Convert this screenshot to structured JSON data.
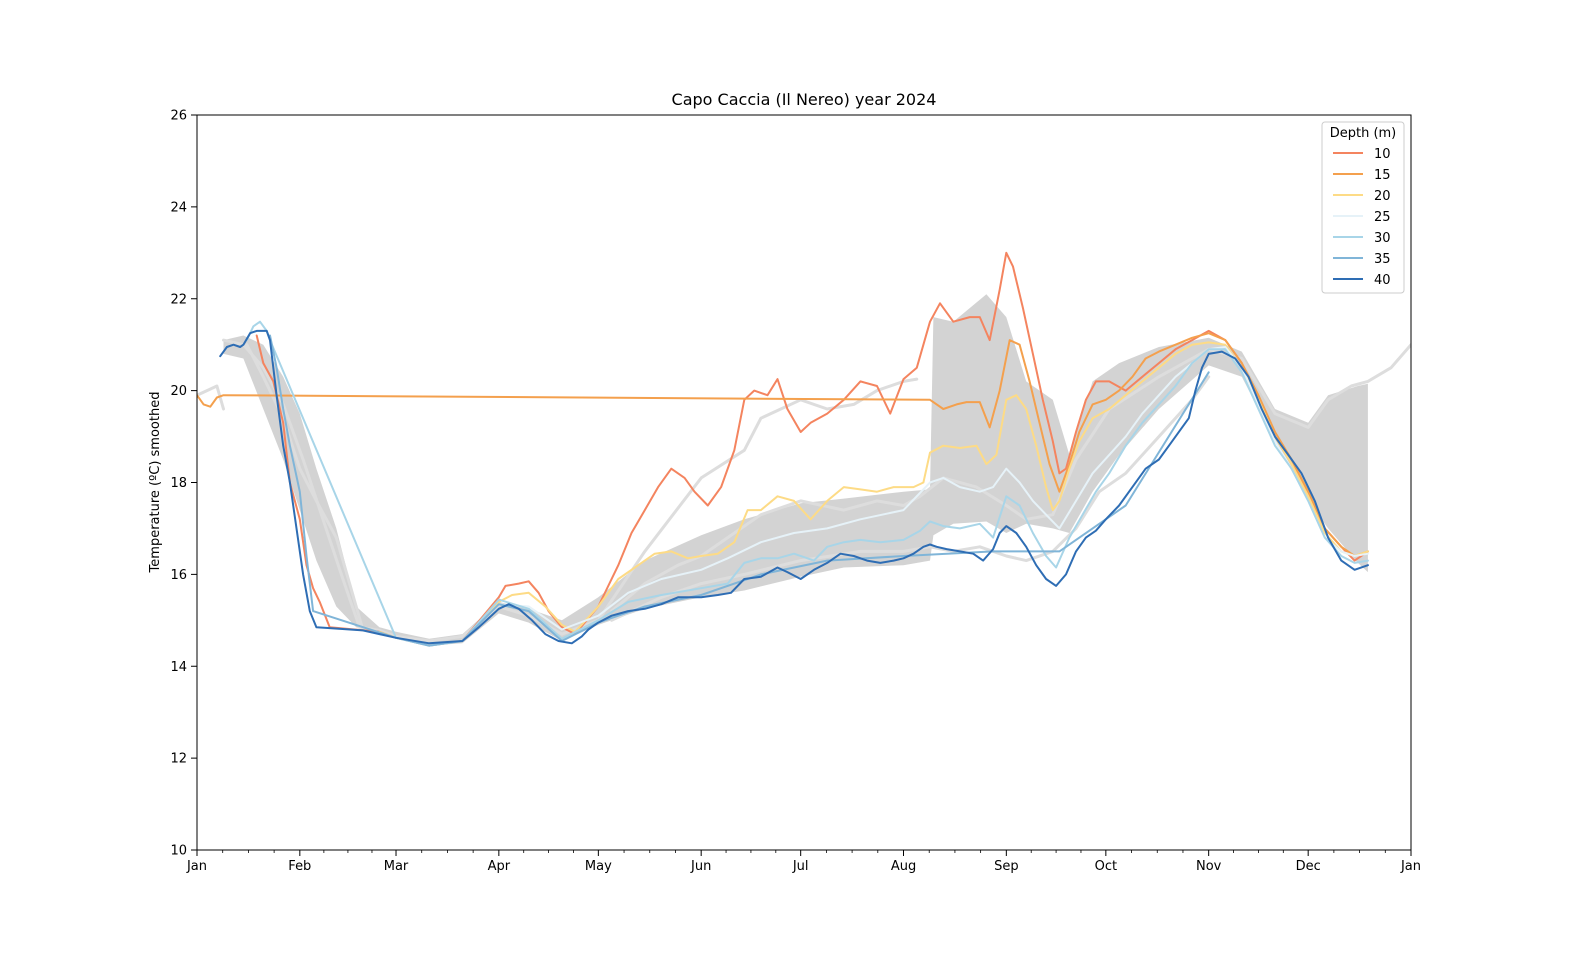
{
  "chart_data": {
    "type": "line",
    "title": "Capo Caccia (Il Nereo) year 2024",
    "xlabel": "",
    "ylabel": "Temperature (ºC) smoothed",
    "ylim": [
      10,
      26
    ],
    "yticks": [
      10,
      12,
      14,
      16,
      18,
      20,
      22,
      24,
      26
    ],
    "xlim_day": [
      0,
      366
    ],
    "xticks": [
      {
        "label": "Jan",
        "day": 0
      },
      {
        "label": "Feb",
        "day": 31
      },
      {
        "label": "Mar",
        "day": 60
      },
      {
        "label": "Apr",
        "day": 91
      },
      {
        "label": "May",
        "day": 121
      },
      {
        "label": "Jun",
        "day": 152
      },
      {
        "label": "Jul",
        "day": 182
      },
      {
        "label": "Aug",
        "day": 213
      },
      {
        "label": "Sep",
        "day": 244
      },
      {
        "label": "Oct",
        "day": 274
      },
      {
        "label": "Nov",
        "day": 305
      },
      {
        "label": "Dec",
        "day": 335
      },
      {
        "label": "Jan",
        "day": 366
      }
    ],
    "legend": {
      "title": "Depth (m)",
      "placement": "top-right"
    },
    "grid": false,
    "climatology_band": {
      "color": "#d3d3d3",
      "x": [
        8,
        14,
        20,
        26,
        31,
        36,
        42,
        48,
        55,
        60,
        70,
        80,
        91,
        100,
        110,
        121,
        135,
        152,
        165,
        182,
        195,
        213,
        221,
        222,
        228,
        238,
        244,
        250,
        258,
        263,
        270,
        278,
        290,
        305,
        315,
        325,
        335,
        341,
        350,
        353
      ],
      "lower": [
        20.8,
        20.7,
        19.6,
        18.5,
        17.4,
        16.3,
        15.3,
        14.85,
        14.72,
        14.62,
        14.45,
        14.5,
        15.15,
        14.95,
        14.55,
        14.9,
        15.25,
        15.5,
        15.65,
        15.95,
        16.15,
        16.2,
        16.3,
        16.85,
        17.1,
        17.15,
        16.9,
        17.1,
        17.0,
        16.9,
        17.8,
        18.6,
        19.6,
        20.55,
        20.3,
        18.9,
        17.6,
        17.0,
        16.25,
        16.05
      ],
      "upper": [
        21.1,
        21.2,
        21.0,
        20.3,
        19.5,
        18.3,
        17.0,
        15.3,
        14.85,
        14.75,
        14.6,
        14.7,
        15.4,
        15.25,
        15.0,
        15.5,
        16.3,
        16.85,
        17.2,
        17.55,
        17.65,
        17.8,
        17.85,
        21.6,
        21.5,
        22.1,
        21.6,
        20.2,
        19.8,
        18.6,
        20.2,
        20.6,
        20.95,
        21.15,
        20.85,
        19.6,
        19.3,
        19.9,
        20.1,
        20.15
      ]
    },
    "gray_lines": [
      {
        "name": "",
        "color": "#dddddd",
        "x": [
          0,
          3,
          6,
          8
        ],
        "y": [
          19.9,
          20.0,
          20.1,
          19.6
        ]
      },
      {
        "name": "",
        "color": "#dddddd",
        "x": [
          8,
          14,
          20,
          26,
          32,
          38,
          44,
          49,
          55,
          60,
          70,
          80,
          91,
          100,
          110,
          121,
          135,
          152,
          165,
          170,
          176,
          182,
          190,
          198,
          205,
          213,
          217
        ],
        "y": [
          21.1,
          21.0,
          20.5,
          19.7,
          18.5,
          17.2,
          15.9,
          14.85,
          14.78,
          14.65,
          14.55,
          14.65,
          15.3,
          15.1,
          14.7,
          15.0,
          16.5,
          18.1,
          18.7,
          19.4,
          19.6,
          19.8,
          19.6,
          19.7,
          20.0,
          20.2,
          20.25
        ]
      },
      {
        "name": "",
        "color": "#dddddd",
        "x": [
          15,
          20,
          26,
          31,
          36,
          42,
          46,
          50
        ],
        "y": [
          21.0,
          20.3,
          19.4,
          18.3,
          17.6,
          16.8,
          15.8,
          14.8
        ]
      },
      {
        "name": "",
        "color": "#dddddd",
        "x": [
          125,
          135,
          145,
          152,
          160,
          170,
          182,
          195,
          205,
          213,
          218,
          225,
          235,
          244,
          250,
          258,
          265,
          275,
          290,
          305,
          315,
          325,
          335,
          341,
          348,
          353,
          360,
          366
        ],
        "y": [
          15.2,
          15.8,
          16.2,
          16.4,
          16.8,
          17.3,
          17.6,
          17.4,
          17.6,
          17.5,
          17.7,
          18.1,
          17.9,
          17.5,
          17.2,
          17.3,
          18.5,
          19.6,
          20.3,
          20.9,
          20.7,
          19.5,
          19.2,
          19.8,
          20.1,
          20.2,
          20.5,
          21.0
        ]
      },
      {
        "name": "",
        "color": "#dddddd",
        "x": [
          125,
          140,
          152,
          165,
          182,
          200,
          213,
          221,
          228,
          236,
          244,
          250,
          258,
          265,
          272,
          280,
          290,
          300,
          305
        ],
        "y": [
          15.0,
          15.5,
          15.8,
          16.0,
          16.3,
          16.5,
          16.5,
          16.6,
          16.5,
          16.6,
          16.4,
          16.3,
          16.5,
          17.0,
          17.8,
          18.2,
          19.0,
          19.8,
          20.3
        ]
      }
    ],
    "series": [
      {
        "name": "10",
        "color": "#f4845f",
        "x": [
          18,
          20,
          23,
          26,
          28,
          31,
          33,
          35,
          37,
          40,
          55,
          60,
          70,
          80,
          91,
          93,
          97,
          100,
          103,
          106,
          110,
          114,
          121,
          127,
          131,
          135,
          139,
          143,
          147,
          150,
          154,
          158,
          162,
          165,
          168,
          172,
          175,
          178,
          182,
          185,
          190,
          195,
          200,
          205,
          209,
          213,
          217,
          221,
          224,
          228,
          233,
          236,
          239,
          242,
          244,
          246,
          249,
          252,
          255,
          258,
          260,
          262,
          265,
          268,
          271,
          275,
          280,
          285,
          290,
          295,
          300,
          305,
          310,
          315,
          320,
          325,
          330,
          335,
          340,
          345,
          349,
          353
        ],
        "y": [
          21.2,
          20.6,
          20.2,
          19.3,
          18.0,
          17.2,
          16.2,
          15.7,
          15.4,
          14.85,
          14.75,
          14.62,
          14.45,
          14.55,
          15.5,
          15.75,
          15.8,
          15.85,
          15.6,
          15.2,
          14.85,
          14.7,
          15.3,
          16.2,
          16.9,
          17.4,
          17.9,
          18.3,
          18.1,
          17.8,
          17.5,
          17.9,
          18.7,
          19.8,
          20.0,
          19.9,
          20.25,
          19.6,
          19.1,
          19.3,
          19.5,
          19.8,
          20.2,
          20.1,
          19.5,
          20.25,
          20.5,
          21.5,
          21.9,
          21.5,
          21.6,
          21.6,
          21.1,
          22.2,
          23.0,
          22.7,
          21.8,
          20.8,
          19.8,
          18.9,
          18.2,
          18.3,
          19.1,
          19.8,
          20.2,
          20.2,
          20.0,
          20.3,
          20.6,
          20.9,
          21.1,
          21.3,
          21.1,
          20.6,
          19.8,
          19.0,
          18.4,
          17.8,
          17.0,
          16.6,
          16.3,
          16.5
        ]
      },
      {
        "name": "15",
        "color": "#f4a04d",
        "x": [
          0,
          2,
          4,
          6,
          8,
          221,
          225,
          229,
          232,
          236,
          239,
          242,
          245,
          248,
          251,
          254,
          257,
          260,
          263,
          266,
          270,
          274,
          278,
          282,
          286,
          290,
          295,
          300,
          305,
          310,
          315,
          320,
          325,
          330,
          335,
          340,
          345,
          349,
          353
        ],
        "y": [
          19.9,
          19.7,
          19.65,
          19.85,
          19.9,
          19.8,
          19.6,
          19.7,
          19.75,
          19.75,
          19.2,
          20.0,
          21.1,
          21.0,
          20.2,
          19.3,
          18.4,
          17.8,
          18.4,
          19.1,
          19.7,
          19.8,
          20.0,
          20.3,
          20.7,
          20.85,
          21.0,
          21.15,
          21.25,
          21.1,
          20.6,
          19.9,
          19.1,
          18.5,
          17.8,
          17.0,
          16.6,
          16.4,
          16.5
        ]
      },
      {
        "name": "20",
        "color": "#fddb86",
        "x": [
          55,
          60,
          70,
          80,
          91,
          95,
          100,
          105,
          110,
          114,
          121,
          127,
          133,
          138,
          143,
          148,
          152,
          157,
          162,
          166,
          170,
          175,
          180,
          185,
          190,
          195,
          200,
          205,
          210,
          213,
          216,
          219,
          221,
          225,
          230,
          235,
          238,
          241,
          244,
          247,
          250,
          253,
          256,
          258,
          260,
          263,
          266,
          270,
          275,
          280,
          285,
          290,
          295,
          300,
          305,
          310,
          315,
          320,
          325,
          330,
          335,
          340,
          345,
          349,
          353
        ],
        "y": [
          14.75,
          14.62,
          14.45,
          14.55,
          15.4,
          15.55,
          15.6,
          15.3,
          14.9,
          14.75,
          15.3,
          15.9,
          16.2,
          16.45,
          16.5,
          16.35,
          16.4,
          16.45,
          16.7,
          17.4,
          17.4,
          17.7,
          17.6,
          17.2,
          17.6,
          17.9,
          17.85,
          17.8,
          17.9,
          17.9,
          17.9,
          18.0,
          18.65,
          18.8,
          18.75,
          18.8,
          18.4,
          18.6,
          19.8,
          19.9,
          19.6,
          18.8,
          17.9,
          17.4,
          17.6,
          18.3,
          18.9,
          19.4,
          19.6,
          19.9,
          20.2,
          20.5,
          20.8,
          21.0,
          21.05,
          21.0,
          20.5,
          19.8,
          19.0,
          18.4,
          17.7,
          16.9,
          16.5,
          16.4,
          16.5
        ]
      },
      {
        "name": "25",
        "color": "#e6f2f8",
        "x": [
          60,
          70,
          80,
          91,
          100,
          110,
          121,
          130,
          140,
          152,
          160,
          170,
          180,
          190,
          200,
          213,
          221,
          225,
          230,
          236,
          240,
          244,
          248,
          252,
          256,
          260,
          265,
          270,
          275,
          280,
          285,
          290,
          295,
          300,
          305,
          310,
          315,
          320,
          325,
          330,
          335,
          340,
          345,
          349,
          353
        ],
        "y": [
          14.62,
          14.45,
          14.55,
          15.35,
          15.3,
          14.8,
          15.1,
          15.6,
          15.9,
          16.1,
          16.35,
          16.7,
          16.9,
          17.0,
          17.2,
          17.4,
          18.0,
          18.1,
          17.9,
          17.8,
          17.9,
          18.3,
          18.0,
          17.6,
          17.3,
          17.0,
          17.6,
          18.2,
          18.6,
          19.0,
          19.5,
          19.9,
          20.3,
          20.6,
          20.9,
          20.95,
          20.5,
          19.7,
          18.9,
          18.3,
          17.6,
          16.8,
          16.5,
          16.4,
          16.45
        ]
      },
      {
        "name": "30",
        "color": "#a8d5e8",
        "x": [
          15,
          17,
          19,
          21,
          22,
          60,
          70,
          80,
          91,
          100,
          110,
          121,
          130,
          140,
          152,
          160,
          165,
          170,
          175,
          180,
          186,
          190,
          195,
          200,
          206,
          213,
          218,
          221,
          225,
          230,
          236,
          240,
          244,
          248,
          252,
          256,
          259,
          263,
          267,
          271,
          275,
          280,
          285,
          290,
          295,
          300,
          305,
          310,
          315,
          320,
          325,
          330,
          335,
          340,
          345,
          349,
          353
        ],
        "y": [
          21.1,
          21.4,
          21.5,
          21.3,
          21.1,
          14.62,
          14.45,
          14.55,
          15.45,
          15.25,
          14.6,
          15.0,
          15.4,
          15.55,
          15.7,
          15.8,
          16.25,
          16.35,
          16.35,
          16.45,
          16.3,
          16.6,
          16.7,
          16.75,
          16.7,
          16.75,
          16.95,
          17.15,
          17.05,
          17.0,
          17.1,
          16.8,
          17.7,
          17.5,
          16.9,
          16.4,
          16.15,
          16.8,
          17.3,
          17.8,
          18.2,
          18.8,
          19.3,
          19.7,
          20.1,
          20.6,
          20.9,
          20.9,
          20.4,
          19.6,
          18.8,
          18.3,
          17.6,
          16.8,
          16.4,
          16.25,
          16.3
        ]
      },
      {
        "name": "35",
        "color": "#80b5d8",
        "x": [
          22,
          24,
          26,
          28,
          31,
          33,
          35,
          60,
          70,
          80,
          91,
          100,
          110,
          121,
          135,
          152,
          170,
          190,
          213,
          240,
          260,
          280,
          305
        ],
        "y": [
          21.2,
          20.5,
          19.6,
          18.8,
          17.8,
          16.4,
          15.2,
          14.62,
          14.45,
          14.55,
          15.35,
          15.2,
          14.55,
          14.95,
          15.3,
          15.55,
          16.0,
          16.3,
          16.4,
          16.5,
          16.5,
          17.5,
          20.4
        ]
      },
      {
        "name": "40",
        "color": "#2e6db4",
        "x": [
          7,
          9,
          11,
          13,
          14,
          16,
          18,
          20,
          21,
          22,
          24,
          26,
          28,
          30,
          32,
          34,
          36,
          40,
          50,
          60,
          70,
          80,
          85,
          88,
          91,
          94,
          97,
          101,
          105,
          109,
          113,
          116,
          118,
          121,
          125,
          130,
          135,
          140,
          145,
          152,
          157,
          161,
          165,
          170,
          175,
          178,
          182,
          186,
          190,
          194,
          198,
          202,
          206,
          210,
          213,
          216,
          219,
          221,
          223,
          226,
          230,
          234,
          237,
          240,
          242,
          244,
          247,
          250,
          253,
          256,
          259,
          262,
          265,
          268,
          271,
          274,
          278,
          282,
          286,
          290,
          294,
          297,
          299,
          301,
          303,
          305,
          309,
          313,
          317,
          321,
          325,
          329,
          333,
          337,
          341,
          345,
          349,
          353
        ],
        "y": [
          20.75,
          20.95,
          21.0,
          20.95,
          21.0,
          21.25,
          21.3,
          21.3,
          21.3,
          21.1,
          19.9,
          18.8,
          18.0,
          17.0,
          16.0,
          15.2,
          14.85,
          14.83,
          14.78,
          14.62,
          14.5,
          14.55,
          14.85,
          15.05,
          15.25,
          15.35,
          15.25,
          15.0,
          14.7,
          14.55,
          14.5,
          14.65,
          14.8,
          14.95,
          15.1,
          15.2,
          15.25,
          15.35,
          15.5,
          15.5,
          15.55,
          15.6,
          15.9,
          15.95,
          16.15,
          16.05,
          15.9,
          16.1,
          16.25,
          16.45,
          16.4,
          16.3,
          16.25,
          16.3,
          16.35,
          16.45,
          16.6,
          16.65,
          16.6,
          16.55,
          16.5,
          16.45,
          16.3,
          16.55,
          16.9,
          17.05,
          16.9,
          16.6,
          16.2,
          15.9,
          15.75,
          16.0,
          16.5,
          16.8,
          16.95,
          17.2,
          17.5,
          17.9,
          18.3,
          18.5,
          18.9,
          19.2,
          19.4,
          20.0,
          20.5,
          20.8,
          20.85,
          20.7,
          20.3,
          19.6,
          19.0,
          18.6,
          18.2,
          17.6,
          16.8,
          16.3,
          16.1,
          16.2
        ]
      }
    ]
  }
}
